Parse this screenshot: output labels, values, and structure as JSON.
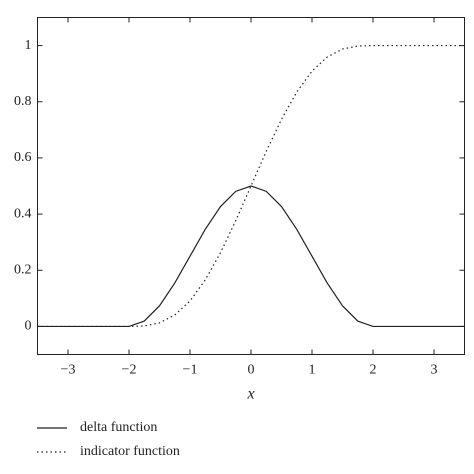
{
  "chart_data": {
    "type": "line",
    "x_label": "x",
    "x": [
      -3.5,
      -3,
      -2.5,
      -2,
      -1.75,
      -1.5,
      -1.25,
      -1,
      -0.75,
      -0.5,
      -0.25,
      0,
      0.25,
      0.5,
      0.75,
      1,
      1.25,
      1.5,
      1.75,
      2,
      2.5,
      3,
      3.5
    ],
    "series": [
      {
        "name": "delta function",
        "color": "#222222",
        "dash": "solid",
        "values": [
          0,
          0,
          0,
          0,
          0.019,
          0.0732,
          0.1543,
          0.25,
          0.3457,
          0.4268,
          0.481,
          0.5,
          0.481,
          0.4268,
          0.3457,
          0.25,
          0.1543,
          0.0732,
          0.019,
          0,
          0,
          0,
          0
        ]
      },
      {
        "name": "indicator function",
        "color": "#222222",
        "dash": "dotted",
        "values": [
          0,
          0,
          0,
          0,
          0.0016,
          0.0125,
          0.0405,
          0.0908,
          0.1655,
          0.2625,
          0.3766,
          0.5,
          0.6234,
          0.7375,
          0.8345,
          0.9092,
          0.9595,
          0.9875,
          0.9984,
          1,
          1,
          1,
          1
        ]
      }
    ],
    "xlim": [
      -3.5,
      3.5
    ],
    "xticks": [
      {
        "value": -3,
        "label": "−3"
      },
      {
        "value": -2,
        "label": "−2"
      },
      {
        "value": -1,
        "label": "−1"
      },
      0,
      1,
      2,
      3
    ],
    "ylim": [
      -0.1,
      1.1
    ],
    "yticks": [
      0,
      0.2,
      0.4,
      0.6,
      0.8,
      1
    ],
    "grid": false,
    "legend": "bottom"
  }
}
